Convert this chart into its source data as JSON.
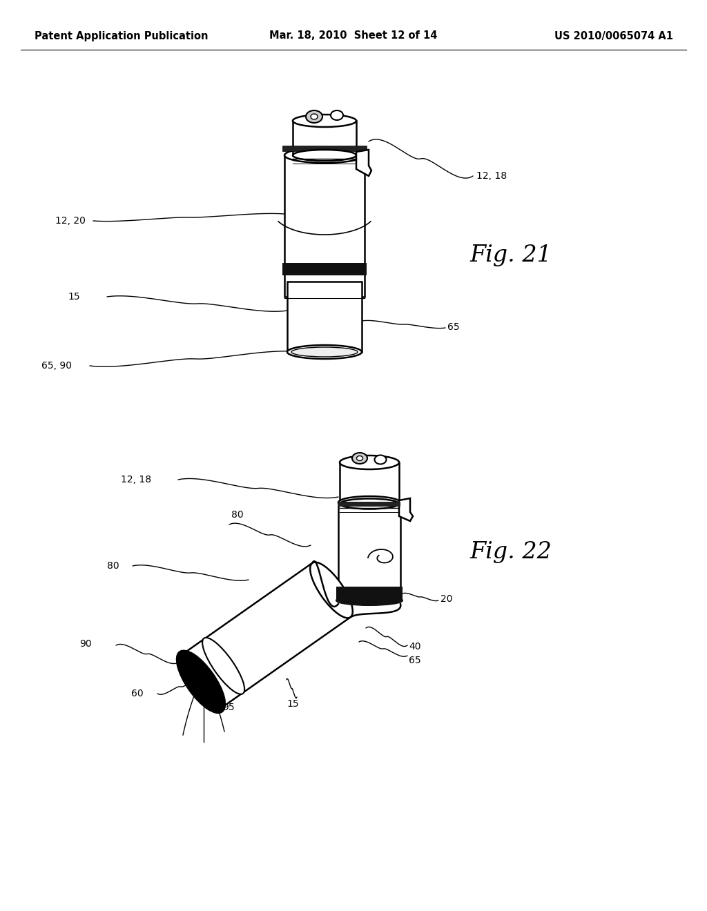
{
  "background_color": "#ffffff",
  "header_left": "Patent Application Publication",
  "header_mid": "Mar. 18, 2010  Sheet 12 of 14",
  "header_right": "US 2010/0065074 A1",
  "header_fontsize": 10.5,
  "fig21_label": "Fig. 21",
  "fig22_label": "Fig. 22",
  "fig_label_fontsize": 24,
  "annotation_fontsize": 10,
  "line_color": "#000000",
  "lw_body": 1.8,
  "lw_thin": 1.0,
  "lw_thick": 3.0
}
